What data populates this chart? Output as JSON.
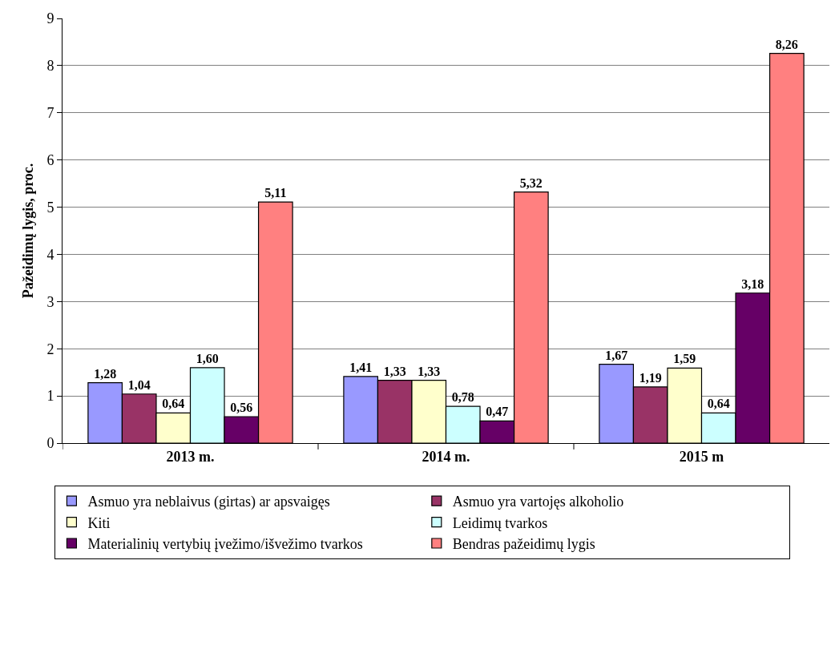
{
  "chart_data": {
    "type": "bar",
    "ylabel": "Pažeidimų lygis, proc.",
    "categories": [
      "2013 m.",
      "2014 m.",
      "2015 m"
    ],
    "series": [
      {
        "name": "Asmuo yra neblaivus (girtas) ar apsvaigęs",
        "color": "#9999ff",
        "values": [
          1.28,
          1.41,
          1.67
        ],
        "value_labels": [
          "1,28",
          "1,41",
          "1,67"
        ]
      },
      {
        "name": "Asmuo yra vartojęs alkoholio",
        "color": "#993366",
        "values": [
          1.04,
          1.33,
          1.19
        ],
        "value_labels": [
          "1,04",
          "1,33",
          "1,19"
        ]
      },
      {
        "name": "Kiti",
        "color": "#ffffcc",
        "values": [
          0.64,
          1.33,
          1.59
        ],
        "value_labels": [
          "0,64",
          "1,33",
          "1,59"
        ]
      },
      {
        "name": "Leidimų tvarkos",
        "color": "#ccffff",
        "values": [
          1.6,
          0.78,
          0.64
        ],
        "value_labels": [
          "1,60",
          "0,78",
          "0,64"
        ]
      },
      {
        "name": "Materialinių vertybių įvežimo/išvežimo tvarkos",
        "color": "#660066",
        "values": [
          0.56,
          0.47,
          3.18
        ],
        "value_labels": [
          "0,56",
          "0,47",
          "3,18"
        ]
      },
      {
        "name": "Bendras pažeidimų lygis",
        "color": "#ff8080",
        "values": [
          5.11,
          5.32,
          8.26
        ],
        "value_labels": [
          "5,11",
          "5,32",
          "8,26"
        ]
      }
    ],
    "ylim": [
      0,
      9
    ],
    "yticks": [
      0,
      1,
      2,
      3,
      4,
      5,
      6,
      7,
      8,
      9
    ],
    "grid": "y",
    "legend": "bottom"
  }
}
